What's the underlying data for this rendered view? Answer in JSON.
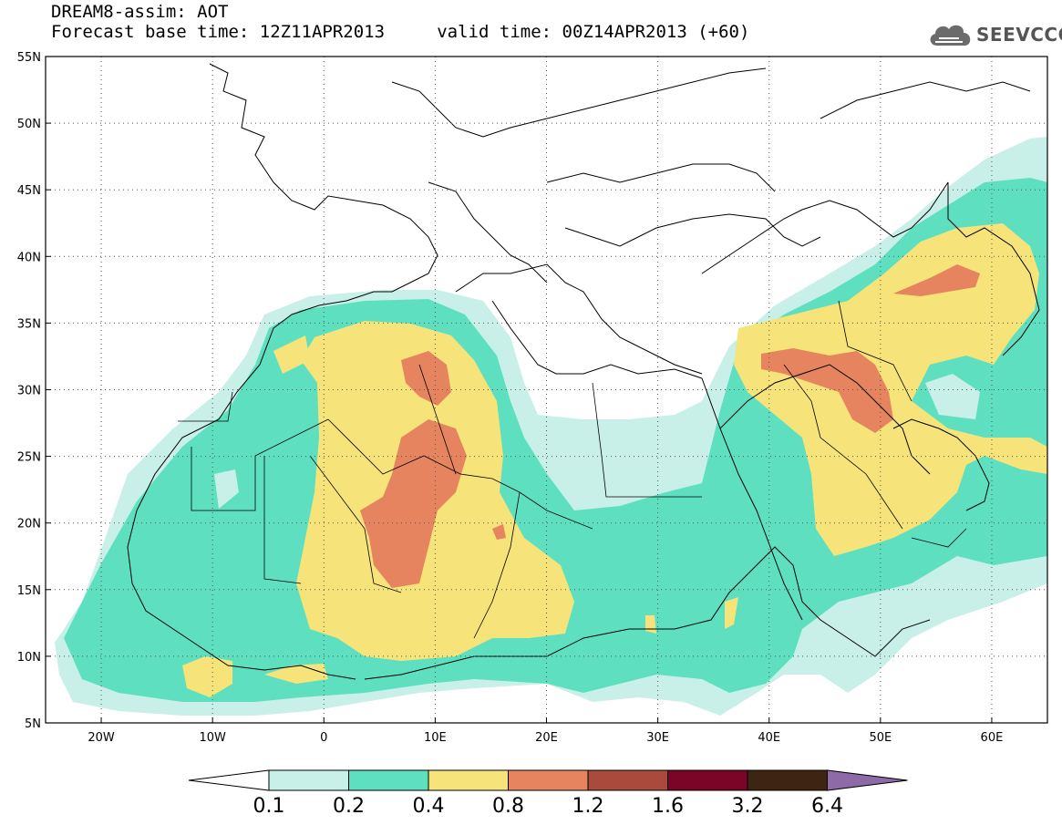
{
  "header": {
    "line1": "DREAM8-assim: AOT",
    "line2": "Forecast base time: 12Z11APR2013     valid time: 00Z14APR2013 (+60)"
  },
  "logo": {
    "text": "SEEVCCC",
    "icon": "cloud-icon"
  },
  "map": {
    "projection": "cylindrical equidistant",
    "lon_range": [
      -25,
      65
    ],
    "lat_range": [
      5,
      55
    ],
    "grid": "dotted",
    "lat_ticks": [
      "5N",
      "10N",
      "15N",
      "20N",
      "25N",
      "30N",
      "35N",
      "40N",
      "45N",
      "50N",
      "55N"
    ],
    "lon_ticks": [
      "20W",
      "10W",
      "0",
      "10E",
      "20E",
      "30E",
      "40E",
      "50E",
      "60E"
    ],
    "lat_values": [
      5,
      10,
      15,
      20,
      25,
      30,
      35,
      40,
      45,
      50,
      55
    ],
    "lon_values": [
      -20,
      -10,
      0,
      10,
      20,
      30,
      40,
      50,
      60
    ]
  },
  "colorbar": {
    "levels": [
      "0.1",
      "0.2",
      "0.4",
      "0.8",
      "1.2",
      "1.6",
      "3.2",
      "6.4"
    ],
    "colors": [
      "#c8f0e8",
      "#5ee0c0",
      "#f6e47a",
      "#e5845e",
      "#a94a3c",
      "#7a0526",
      "#3e2412"
    ],
    "under_color": "#ffffff",
    "over_color": "#8e6aa6"
  },
  "colors": {
    "shade1": "#c8f0e8",
    "shade2": "#5ee0c0",
    "shade3": "#f6e47a",
    "shade4": "#e5845e"
  }
}
